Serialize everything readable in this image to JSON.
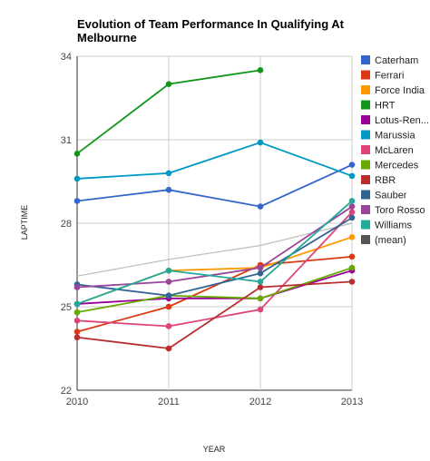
{
  "chart_data": {
    "type": "line",
    "title_lines": [
      "Evolution of Team Performance In Qualifying At",
      "Melbourne"
    ],
    "xlabel": "YEAR",
    "ylabel": "LAPTIME",
    "x": [
      "2010",
      "2011",
      "2012",
      "2013"
    ],
    "ylim": [
      22,
      34
    ],
    "yticks": [
      22,
      25,
      28,
      31,
      34
    ],
    "grid": "horizontal",
    "legend_position": "right",
    "series": [
      {
        "name": "Caterham",
        "color": "#3366cc",
        "values": [
          28.8,
          29.2,
          28.6,
          30.1
        ]
      },
      {
        "name": "Ferrari",
        "color": "#dc3912",
        "values": [
          24.1,
          25.0,
          26.5,
          26.8
        ]
      },
      {
        "name": "Force India",
        "color": "#ff9900",
        "values": [
          25.1,
          26.3,
          26.4,
          27.5
        ]
      },
      {
        "name": "HRT",
        "color": "#109618",
        "values": [
          30.5,
          33.0,
          33.5,
          null
        ]
      },
      {
        "name": "Lotus-Ren...",
        "color": "#990099",
        "values": [
          25.1,
          25.3,
          25.3,
          26.3
        ]
      },
      {
        "name": "Marussia",
        "color": "#0099c6",
        "values": [
          29.6,
          29.8,
          30.9,
          29.7
        ]
      },
      {
        "name": "McLaren",
        "color": "#dd4477",
        "values": [
          24.5,
          24.3,
          24.9,
          28.4
        ]
      },
      {
        "name": "Mercedes",
        "color": "#66aa00",
        "values": [
          24.8,
          25.4,
          25.3,
          26.4
        ]
      },
      {
        "name": "RBR",
        "color": "#b82e2e",
        "values": [
          23.9,
          23.5,
          25.7,
          25.9
        ]
      },
      {
        "name": "Sauber",
        "color": "#316395",
        "values": [
          25.8,
          25.4,
          26.2,
          28.2
        ]
      },
      {
        "name": "Toro Rosso",
        "color": "#994499",
        "values": [
          25.7,
          25.9,
          26.4,
          28.6
        ]
      },
      {
        "name": "Williams",
        "color": "#22aa99",
        "values": [
          25.1,
          26.3,
          25.9,
          28.8
        ]
      },
      {
        "name": "(mean)",
        "color": "#c0c0c0",
        "legend_color": "#555555",
        "no_markers": true,
        "values": [
          26.1,
          26.7,
          27.2,
          28.0
        ]
      }
    ]
  }
}
